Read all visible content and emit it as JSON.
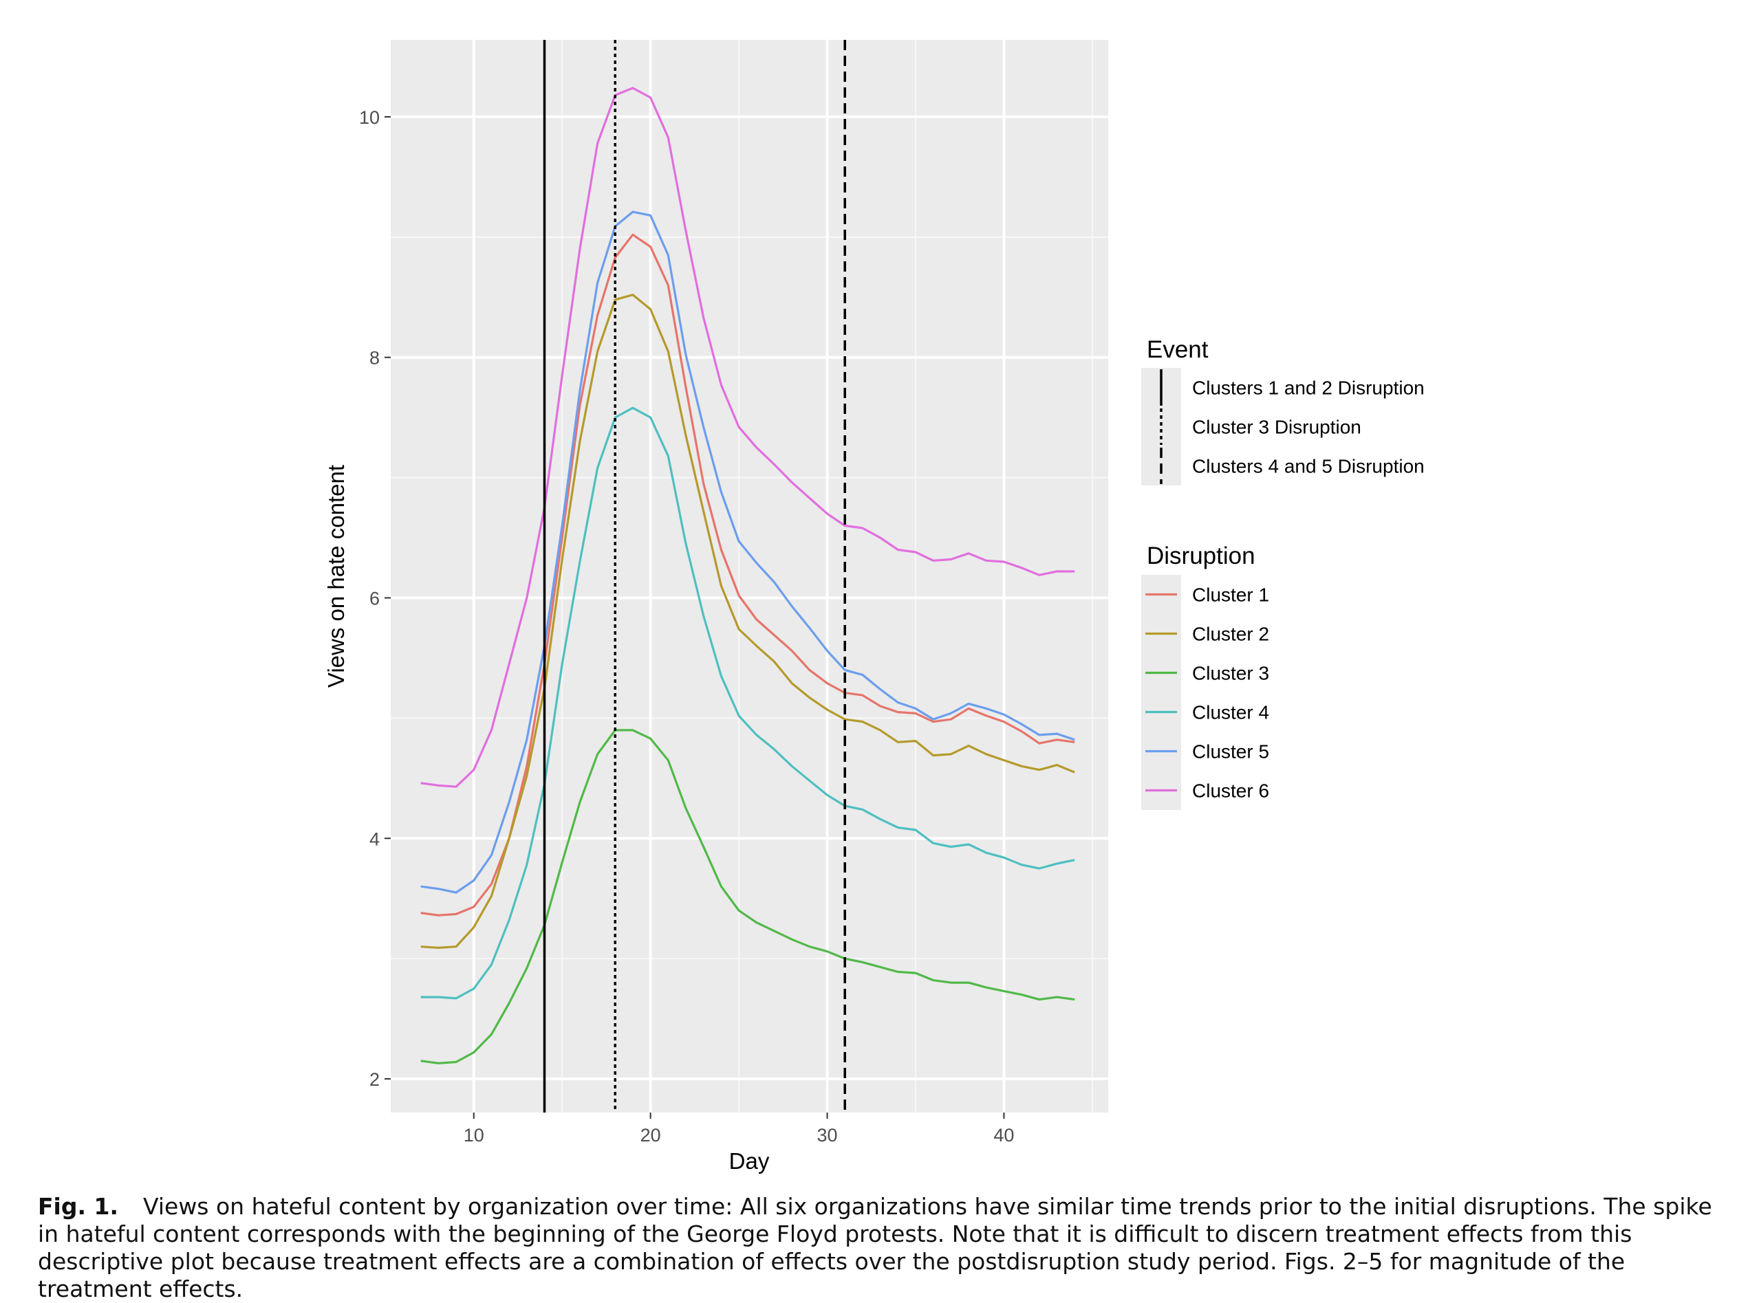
{
  "chart_data": {
    "type": "line",
    "xlabel": "Day",
    "ylabel": "Views on hate content",
    "xlim": [
      5.3,
      45.9
    ],
    "ylim": [
      1.72,
      10.64
    ],
    "x_ticks": [
      10,
      20,
      30,
      40
    ],
    "y_ticks": [
      2,
      4,
      6,
      8,
      10
    ],
    "grid": true,
    "x": [
      7,
      8,
      9,
      10,
      11,
      12,
      13,
      14,
      15,
      16,
      17,
      18,
      19,
      20,
      21,
      22,
      23,
      24,
      25,
      26,
      27,
      28,
      29,
      30,
      31,
      32,
      33,
      34,
      35,
      36,
      37,
      38,
      39,
      40,
      41,
      42,
      43,
      44
    ],
    "series": [
      {
        "name": "Cluster 1",
        "color": "#E6756B",
        "values": [
          3.38,
          3.36,
          3.37,
          3.43,
          3.62,
          4.0,
          4.6,
          5.45,
          6.5,
          7.6,
          8.35,
          8.83,
          9.02,
          8.92,
          8.6,
          7.75,
          6.95,
          6.4,
          6.02,
          5.82,
          5.69,
          5.56,
          5.4,
          5.29,
          5.21,
          5.19,
          5.1,
          5.05,
          5.04,
          4.97,
          4.99,
          5.08,
          5.02,
          4.97,
          4.89,
          4.79,
          4.82,
          4.8
        ]
      },
      {
        "name": "Cluster 2",
        "color": "#B59A2C",
        "values": [
          3.1,
          3.09,
          3.1,
          3.26,
          3.52,
          4.0,
          4.52,
          5.25,
          6.32,
          7.3,
          8.05,
          8.48,
          8.52,
          8.4,
          8.05,
          7.35,
          6.72,
          6.1,
          5.74,
          5.6,
          5.47,
          5.29,
          5.17,
          5.07,
          4.99,
          4.97,
          4.9,
          4.8,
          4.81,
          4.69,
          4.7,
          4.77,
          4.7,
          4.65,
          4.6,
          4.57,
          4.61,
          4.55
        ]
      },
      {
        "name": "Cluster 3",
        "color": "#51B948",
        "values": [
          2.15,
          2.13,
          2.14,
          2.22,
          2.37,
          2.63,
          2.92,
          3.28,
          3.8,
          4.3,
          4.7,
          4.9,
          4.9,
          4.83,
          4.65,
          4.25,
          3.93,
          3.6,
          3.4,
          3.3,
          3.23,
          3.16,
          3.1,
          3.06,
          3.0,
          2.97,
          2.93,
          2.89,
          2.88,
          2.82,
          2.8,
          2.8,
          2.76,
          2.73,
          2.7,
          2.66,
          2.68,
          2.66
        ]
      },
      {
        "name": "Cluster 4",
        "color": "#4FBFC0",
        "values": [
          2.68,
          2.68,
          2.67,
          2.75,
          2.95,
          3.32,
          3.78,
          4.45,
          5.45,
          6.3,
          7.08,
          7.5,
          7.58,
          7.5,
          7.18,
          6.45,
          5.85,
          5.35,
          5.02,
          4.86,
          4.74,
          4.6,
          4.48,
          4.36,
          4.27,
          4.24,
          4.16,
          4.09,
          4.07,
          3.96,
          3.93,
          3.95,
          3.88,
          3.84,
          3.78,
          3.75,
          3.79,
          3.82
        ]
      },
      {
        "name": "Cluster 5",
        "color": "#6C9EEE",
        "values": [
          3.6,
          3.58,
          3.55,
          3.65,
          3.86,
          4.3,
          4.82,
          5.6,
          6.6,
          7.72,
          8.62,
          9.09,
          9.21,
          9.18,
          8.85,
          8.02,
          7.42,
          6.88,
          6.47,
          6.29,
          6.13,
          5.93,
          5.75,
          5.56,
          5.4,
          5.36,
          5.24,
          5.13,
          5.08,
          4.99,
          5.04,
          5.12,
          5.08,
          5.03,
          4.95,
          4.86,
          4.87,
          4.82
        ]
      },
      {
        "name": "Cluster 6",
        "color": "#E16FDE",
        "values": [
          4.46,
          4.44,
          4.43,
          4.57,
          4.9,
          5.45,
          6.0,
          6.75,
          7.85,
          8.9,
          9.78,
          10.18,
          10.24,
          10.16,
          9.83,
          9.05,
          8.33,
          7.77,
          7.42,
          7.25,
          7.11,
          6.96,
          6.83,
          6.7,
          6.6,
          6.58,
          6.5,
          6.4,
          6.38,
          6.31,
          6.32,
          6.37,
          6.31,
          6.3,
          6.25,
          6.19,
          6.22,
          6.22
        ]
      }
    ],
    "events": [
      {
        "name": "Clusters 1 and 2 Disruption",
        "x": 14,
        "style": "solid"
      },
      {
        "name": "Cluster 3 Disruption",
        "x": 18,
        "style": "dotted"
      },
      {
        "name": "Clusters 4 and 5 Disruption",
        "x": 31,
        "style": "dashed"
      }
    ],
    "legend": {
      "placement": "right",
      "event_title": "Event",
      "disruption_title": "Disruption"
    }
  },
  "caption": {
    "label": "Fig. 1.",
    "text": "Views on hateful content by organization over time: All six organizations have similar time trends prior to the initial disruptions. The spike in hateful content corresponds with the beginning of the George Floyd protests. Note that it is difficult to discern treatment effects from this descriptive plot because treatment effects are a combination of effects over the postdisruption study period. Figs. 2–5 for magnitude of the treatment effects."
  }
}
